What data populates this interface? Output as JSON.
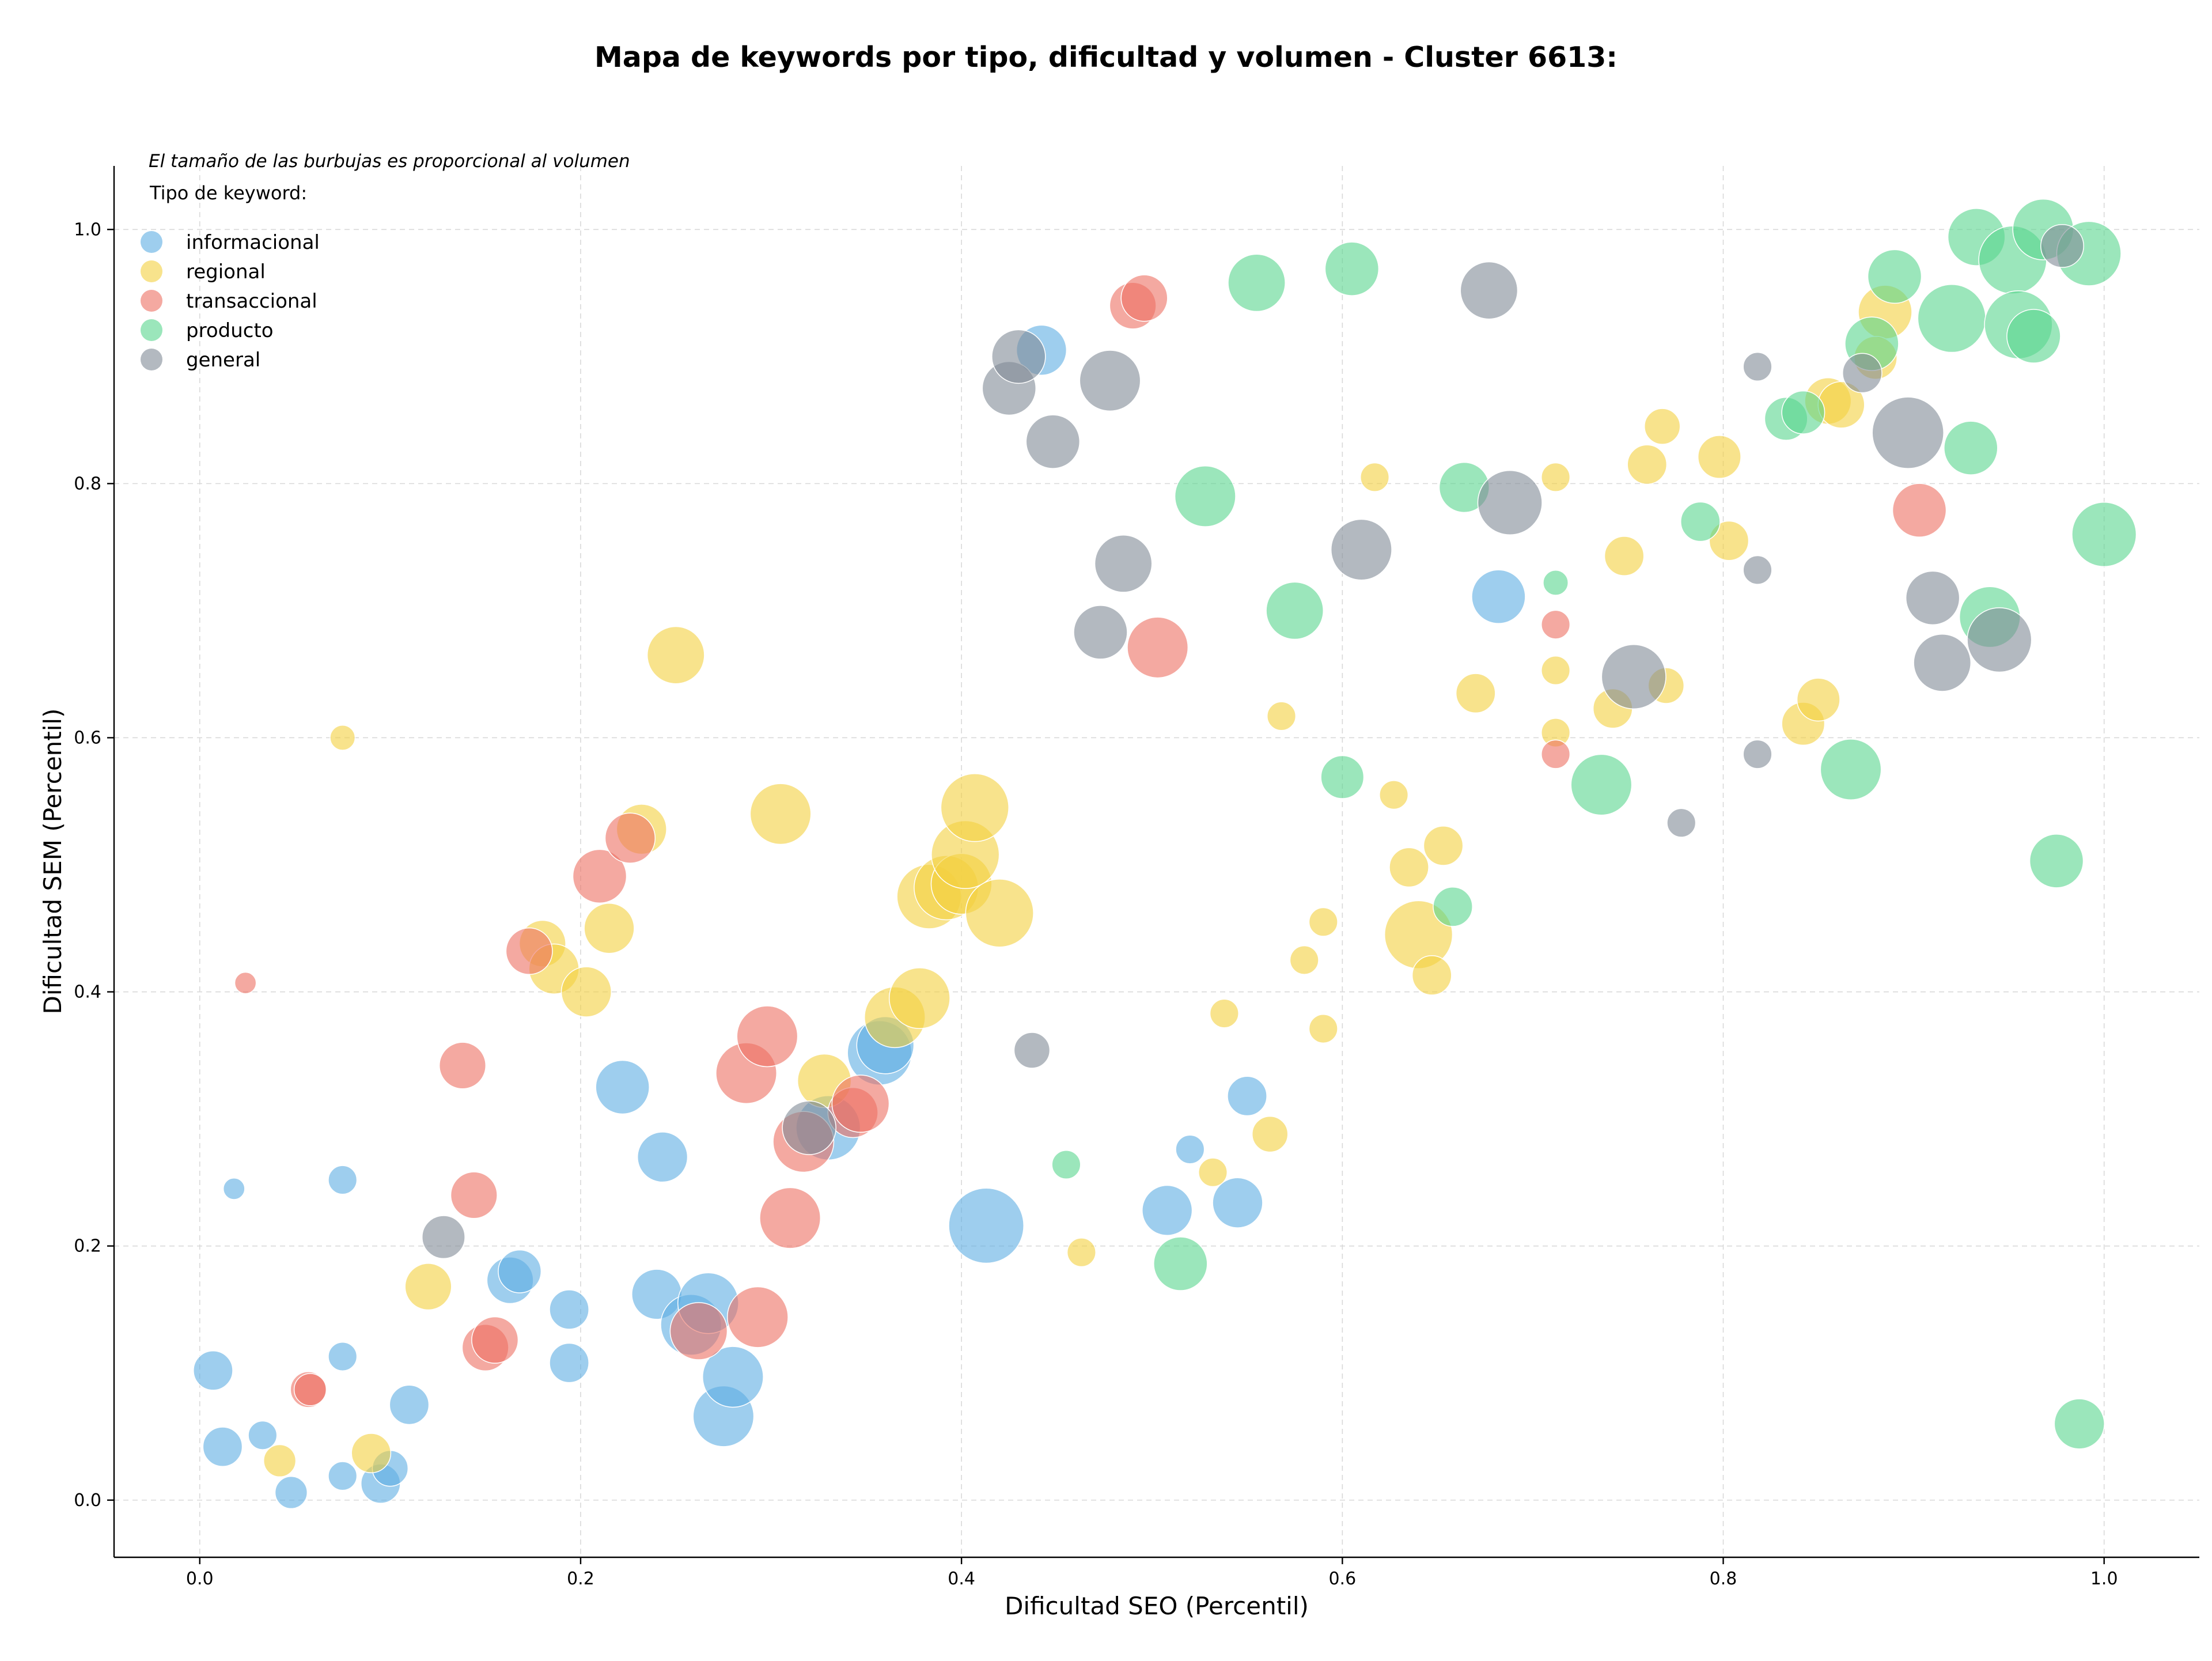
{
  "chart_data": {
    "type": "scatter",
    "title": "Mapa de keywords por tipo, dificultad y volumen - Cluster 6613:",
    "xlabel": "Dificultad SEO (Percentil)",
    "ylabel": "Dificultad SEM (Percentil)",
    "note": "El tamaño de las burbujas es proporcional al volumen",
    "legend_title": "Tipo de keyword:",
    "legend_position": "top-left",
    "grid": true,
    "xlim": [
      -0.045,
      1.05
    ],
    "ylim": [
      -0.045,
      1.05
    ],
    "x_ticks": [
      "0.0",
      "0.2",
      "0.4",
      "0.6",
      "0.8",
      "1.0"
    ],
    "y_ticks": [
      "0.0",
      "0.2",
      "0.4",
      "0.6",
      "0.8",
      "1.0"
    ],
    "point_fields": [
      "x",
      "y",
      "relative_volume"
    ],
    "series": [
      {
        "name": "informacional",
        "color": "#5DADE2",
        "points": [
          [
            0.007,
            0.102,
            0.55
          ],
          [
            0.012,
            0.042,
            0.55
          ],
          [
            0.018,
            0.245,
            0.3
          ],
          [
            0.033,
            0.051,
            0.4
          ],
          [
            0.048,
            0.006,
            0.45
          ],
          [
            0.075,
            0.252,
            0.4
          ],
          [
            0.075,
            0.113,
            0.4
          ],
          [
            0.075,
            0.019,
            0.4
          ],
          [
            0.095,
            0.013,
            0.55
          ],
          [
            0.1,
            0.025,
            0.5
          ],
          [
            0.11,
            0.075,
            0.55
          ],
          [
            0.163,
            0.173,
            0.65
          ],
          [
            0.168,
            0.18,
            0.6
          ],
          [
            0.194,
            0.15,
            0.55
          ],
          [
            0.194,
            0.108,
            0.55
          ],
          [
            0.222,
            0.325,
            0.75
          ],
          [
            0.24,
            0.162,
            0.7
          ],
          [
            0.243,
            0.27,
            0.7
          ],
          [
            0.258,
            0.138,
            0.85
          ],
          [
            0.267,
            0.155,
            0.85
          ],
          [
            0.275,
            0.066,
            0.85
          ],
          [
            0.28,
            0.097,
            0.85
          ],
          [
            0.33,
            0.293,
            0.9
          ],
          [
            0.357,
            0.352,
            0.9
          ],
          [
            0.36,
            0.358,
            0.8
          ],
          [
            0.413,
            0.216,
            1.05
          ],
          [
            0.442,
            0.905,
            0.7
          ],
          [
            0.508,
            0.228,
            0.7
          ],
          [
            0.52,
            0.276,
            0.4
          ],
          [
            0.545,
            0.234,
            0.7
          ],
          [
            0.55,
            0.318,
            0.55
          ],
          [
            0.682,
            0.711,
            0.75
          ]
        ]
      },
      {
        "name": "regional",
        "color": "#F4D03F",
        "points": [
          [
            0.042,
            0.031,
            0.45
          ],
          [
            0.075,
            0.6,
            0.35
          ],
          [
            0.09,
            0.037,
            0.55
          ],
          [
            0.12,
            0.168,
            0.65
          ],
          [
            0.18,
            0.438,
            0.65
          ],
          [
            0.186,
            0.418,
            0.7
          ],
          [
            0.203,
            0.4,
            0.7
          ],
          [
            0.215,
            0.45,
            0.7
          ],
          [
            0.232,
            0.528,
            0.7
          ],
          [
            0.25,
            0.665,
            0.8
          ],
          [
            0.305,
            0.54,
            0.85
          ],
          [
            0.328,
            0.33,
            0.75
          ],
          [
            0.365,
            0.38,
            0.85
          ],
          [
            0.378,
            0.395,
            0.85
          ],
          [
            0.383,
            0.475,
            0.9
          ],
          [
            0.392,
            0.482,
            0.9
          ],
          [
            0.4,
            0.485,
            0.85
          ],
          [
            0.402,
            0.508,
            0.95
          ],
          [
            0.407,
            0.545,
            0.95
          ],
          [
            0.42,
            0.462,
            0.95
          ],
          [
            0.463,
            0.195,
            0.4
          ],
          [
            0.532,
            0.258,
            0.4
          ],
          [
            0.538,
            0.383,
            0.4
          ],
          [
            0.562,
            0.288,
            0.5
          ],
          [
            0.568,
            0.617,
            0.4
          ],
          [
            0.58,
            0.425,
            0.4
          ],
          [
            0.59,
            0.455,
            0.4
          ],
          [
            0.59,
            0.371,
            0.4
          ],
          [
            0.617,
            0.805,
            0.4
          ],
          [
            0.627,
            0.555,
            0.4
          ],
          [
            0.64,
            0.445,
            0.95
          ],
          [
            0.635,
            0.498,
            0.55
          ],
          [
            0.647,
            0.413,
            0.55
          ],
          [
            0.653,
            0.515,
            0.55
          ],
          [
            0.67,
            0.635,
            0.55
          ],
          [
            0.712,
            0.805,
            0.4
          ],
          [
            0.712,
            0.653,
            0.4
          ],
          [
            0.712,
            0.604,
            0.4
          ],
          [
            0.742,
            0.623,
            0.55
          ],
          [
            0.748,
            0.743,
            0.55
          ],
          [
            0.76,
            0.815,
            0.55
          ],
          [
            0.768,
            0.845,
            0.5
          ],
          [
            0.77,
            0.641,
            0.5
          ],
          [
            0.798,
            0.821,
            0.6
          ],
          [
            0.803,
            0.755,
            0.55
          ],
          [
            0.842,
            0.611,
            0.6
          ],
          [
            0.85,
            0.63,
            0.6
          ],
          [
            0.855,
            0.865,
            0.65
          ],
          [
            0.862,
            0.862,
            0.65
          ],
          [
            0.885,
            0.935,
            0.75
          ],
          [
            0.88,
            0.899,
            0.6
          ]
        ]
      },
      {
        "name": "transaccional",
        "color": "#EC7063",
        "points": [
          [
            0.024,
            0.407,
            0.3
          ],
          [
            0.057,
            0.087,
            0.5
          ],
          [
            0.058,
            0.087,
            0.45
          ],
          [
            0.138,
            0.342,
            0.65
          ],
          [
            0.144,
            0.24,
            0.65
          ],
          [
            0.15,
            0.12,
            0.65
          ],
          [
            0.155,
            0.126,
            0.65
          ],
          [
            0.173,
            0.432,
            0.65
          ],
          [
            0.21,
            0.491,
            0.75
          ],
          [
            0.226,
            0.521,
            0.7
          ],
          [
            0.262,
            0.133,
            0.8
          ],
          [
            0.287,
            0.336,
            0.85
          ],
          [
            0.293,
            0.144,
            0.85
          ],
          [
            0.298,
            0.365,
            0.85
          ],
          [
            0.31,
            0.222,
            0.85
          ],
          [
            0.317,
            0.282,
            0.85
          ],
          [
            0.343,
            0.305,
            0.7
          ],
          [
            0.347,
            0.312,
            0.8
          ],
          [
            0.49,
            0.94,
            0.65
          ],
          [
            0.496,
            0.946,
            0.65
          ],
          [
            0.503,
            0.671,
            0.85
          ],
          [
            0.712,
            0.689,
            0.4
          ],
          [
            0.712,
            0.587,
            0.4
          ],
          [
            0.903,
            0.779,
            0.75
          ]
        ]
      },
      {
        "name": "producto",
        "color": "#58D68D",
        "points": [
          [
            0.455,
            0.264,
            0.4
          ],
          [
            0.515,
            0.186,
            0.75
          ],
          [
            0.528,
            0.79,
            0.85
          ],
          [
            0.555,
            0.958,
            0.8
          ],
          [
            0.575,
            0.7,
            0.8
          ],
          [
            0.6,
            0.569,
            0.6
          ],
          [
            0.605,
            0.969,
            0.75
          ],
          [
            0.658,
            0.467,
            0.55
          ],
          [
            0.664,
            0.797,
            0.7
          ],
          [
            0.712,
            0.722,
            0.35
          ],
          [
            0.736,
            0.563,
            0.85
          ],
          [
            0.788,
            0.77,
            0.55
          ],
          [
            0.833,
            0.851,
            0.6
          ],
          [
            0.842,
            0.856,
            0.6
          ],
          [
            0.867,
            0.575,
            0.85
          ],
          [
            0.878,
            0.91,
            0.75
          ],
          [
            0.89,
            0.963,
            0.75
          ],
          [
            0.92,
            0.93,
            0.95
          ],
          [
            0.93,
            0.828,
            0.75
          ],
          [
            0.933,
            0.994,
            0.8
          ],
          [
            0.94,
            0.695,
            0.85
          ],
          [
            0.952,
            0.976,
            0.95
          ],
          [
            0.955,
            0.925,
            0.95
          ],
          [
            0.963,
            0.916,
            0.75
          ],
          [
            0.968,
            1.0,
            0.85
          ],
          [
            0.975,
            0.503,
            0.75
          ],
          [
            0.987,
            0.06,
            0.7
          ],
          [
            0.992,
            0.981,
            0.9
          ],
          [
            1.0,
            0.76,
            0.9
          ]
        ]
      },
      {
        "name": "general",
        "color": "#808B96",
        "points": [
          [
            0.128,
            0.207,
            0.6
          ],
          [
            0.32,
            0.293,
            0.75
          ],
          [
            0.425,
            0.875,
            0.75
          ],
          [
            0.43,
            0.9,
            0.75
          ],
          [
            0.437,
            0.354,
            0.5
          ],
          [
            0.448,
            0.833,
            0.75
          ],
          [
            0.473,
            0.683,
            0.75
          ],
          [
            0.478,
            0.881,
            0.85
          ],
          [
            0.485,
            0.737,
            0.8
          ],
          [
            0.61,
            0.748,
            0.85
          ],
          [
            0.677,
            0.952,
            0.8
          ],
          [
            0.688,
            0.785,
            0.9
          ],
          [
            0.753,
            0.648,
            0.9
          ],
          [
            0.778,
            0.533,
            0.4
          ],
          [
            0.818,
            0.892,
            0.4
          ],
          [
            0.818,
            0.732,
            0.4
          ],
          [
            0.818,
            0.587,
            0.4
          ],
          [
            0.873,
            0.887,
            0.55
          ],
          [
            0.897,
            0.84,
            1.0
          ],
          [
            0.91,
            0.71,
            0.75
          ],
          [
            0.915,
            0.659,
            0.8
          ],
          [
            0.945,
            0.677,
            0.9
          ],
          [
            0.978,
            0.987,
            0.6
          ]
        ]
      }
    ]
  }
}
